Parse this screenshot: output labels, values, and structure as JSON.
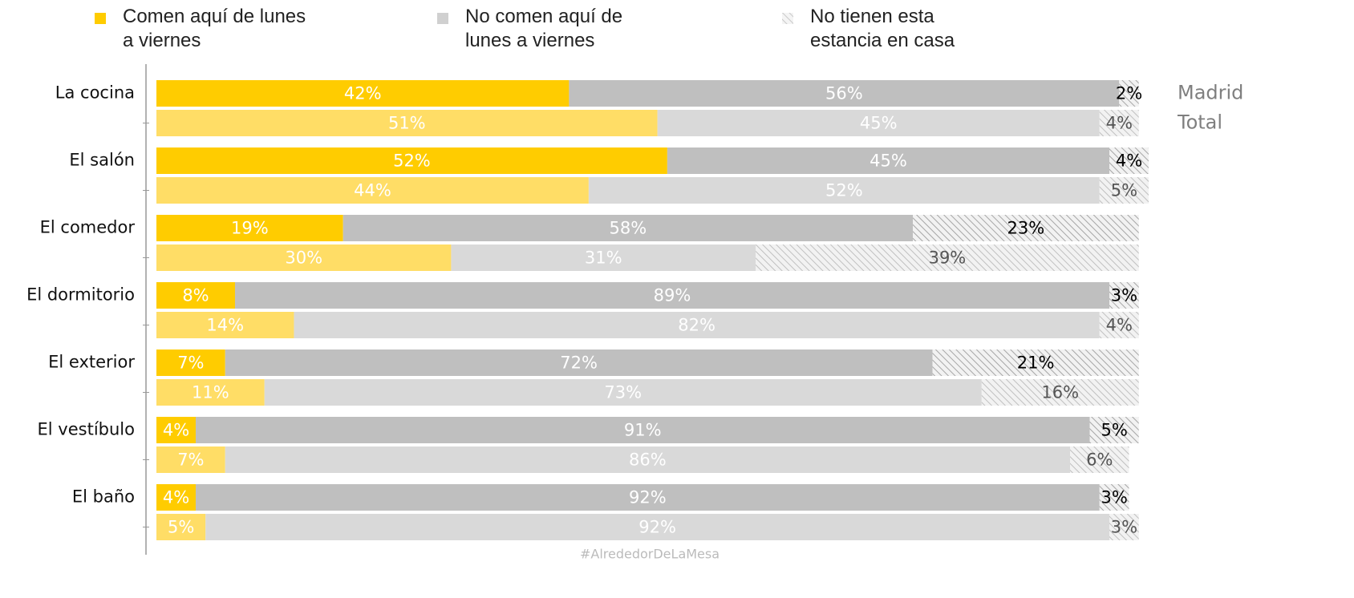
{
  "chart_data": {
    "type": "bar",
    "orientation": "horizontal",
    "stacked": true,
    "legend": [
      {
        "name": "Comen aquí de lunes a viernes",
        "color": "#ffcc00"
      },
      {
        "name": "No comen aquí de lunes a viernes",
        "color": "#d0d0d0"
      },
      {
        "name": "No tienen esta estancia en casa",
        "color": "#c8c8c8",
        "hatch": true
      }
    ],
    "categories": [
      "La cocina",
      "El salón",
      "El comedor",
      "El dormitorio",
      "El exterior",
      "El vestíbulo",
      "El baño"
    ],
    "groups": [
      {
        "name": "Madrid",
        "series": [
          {
            "color": "#ffcc00",
            "label_color": "#ffffff",
            "values": [
              42,
              52,
              19,
              8,
              7,
              4,
              4
            ]
          },
          {
            "color": "#bfbfbf",
            "label_color": "#ffffff",
            "values": [
              56,
              45,
              58,
              89,
              72,
              91,
              92
            ]
          },
          {
            "color": "#a6a6a6",
            "hatch": true,
            "label_color": "#000000",
            "values": [
              2,
              4,
              23,
              3,
              21,
              5,
              3
            ]
          }
        ]
      },
      {
        "name": "Total",
        "series": [
          {
            "color": "#ffdd66",
            "label_color": "#ffffff",
            "values": [
              51,
              44,
              30,
              14,
              11,
              7,
              5
            ]
          },
          {
            "color": "#d9d9d9",
            "label_color": "#ffffff",
            "values": [
              45,
              52,
              31,
              82,
              73,
              86,
              92
            ]
          },
          {
            "color": "#c0c0c0",
            "hatch": true,
            "label_color": "#555555",
            "values": [
              4,
              5,
              39,
              4,
              16,
              6,
              3
            ]
          }
        ]
      }
    ],
    "value_labels": [
      [
        [
          "42%",
          "52%",
          "19%",
          "8%",
          "7%",
          "4%",
          "4%"
        ],
        [
          "56%",
          "45%",
          "58%",
          "89%",
          "72%",
          "91%",
          "92%"
        ],
        [
          "2%",
          "4%",
          "23%",
          "3%",
          "21%",
          "5%",
          "3%"
        ]
      ],
      [
        [
          "51%",
          "44%",
          "30%",
          "14%",
          "11%",
          "7%",
          "5%"
        ],
        [
          "45%",
          "52%",
          "31%",
          "82%",
          "73%",
          "86%",
          "92%"
        ],
        [
          "4%",
          "5%",
          "39%",
          "4%",
          "16%",
          "6%",
          "3%"
        ]
      ]
    ],
    "xlim": [
      0,
      101
    ],
    "source": "#AlrededorDeLaMesa"
  }
}
